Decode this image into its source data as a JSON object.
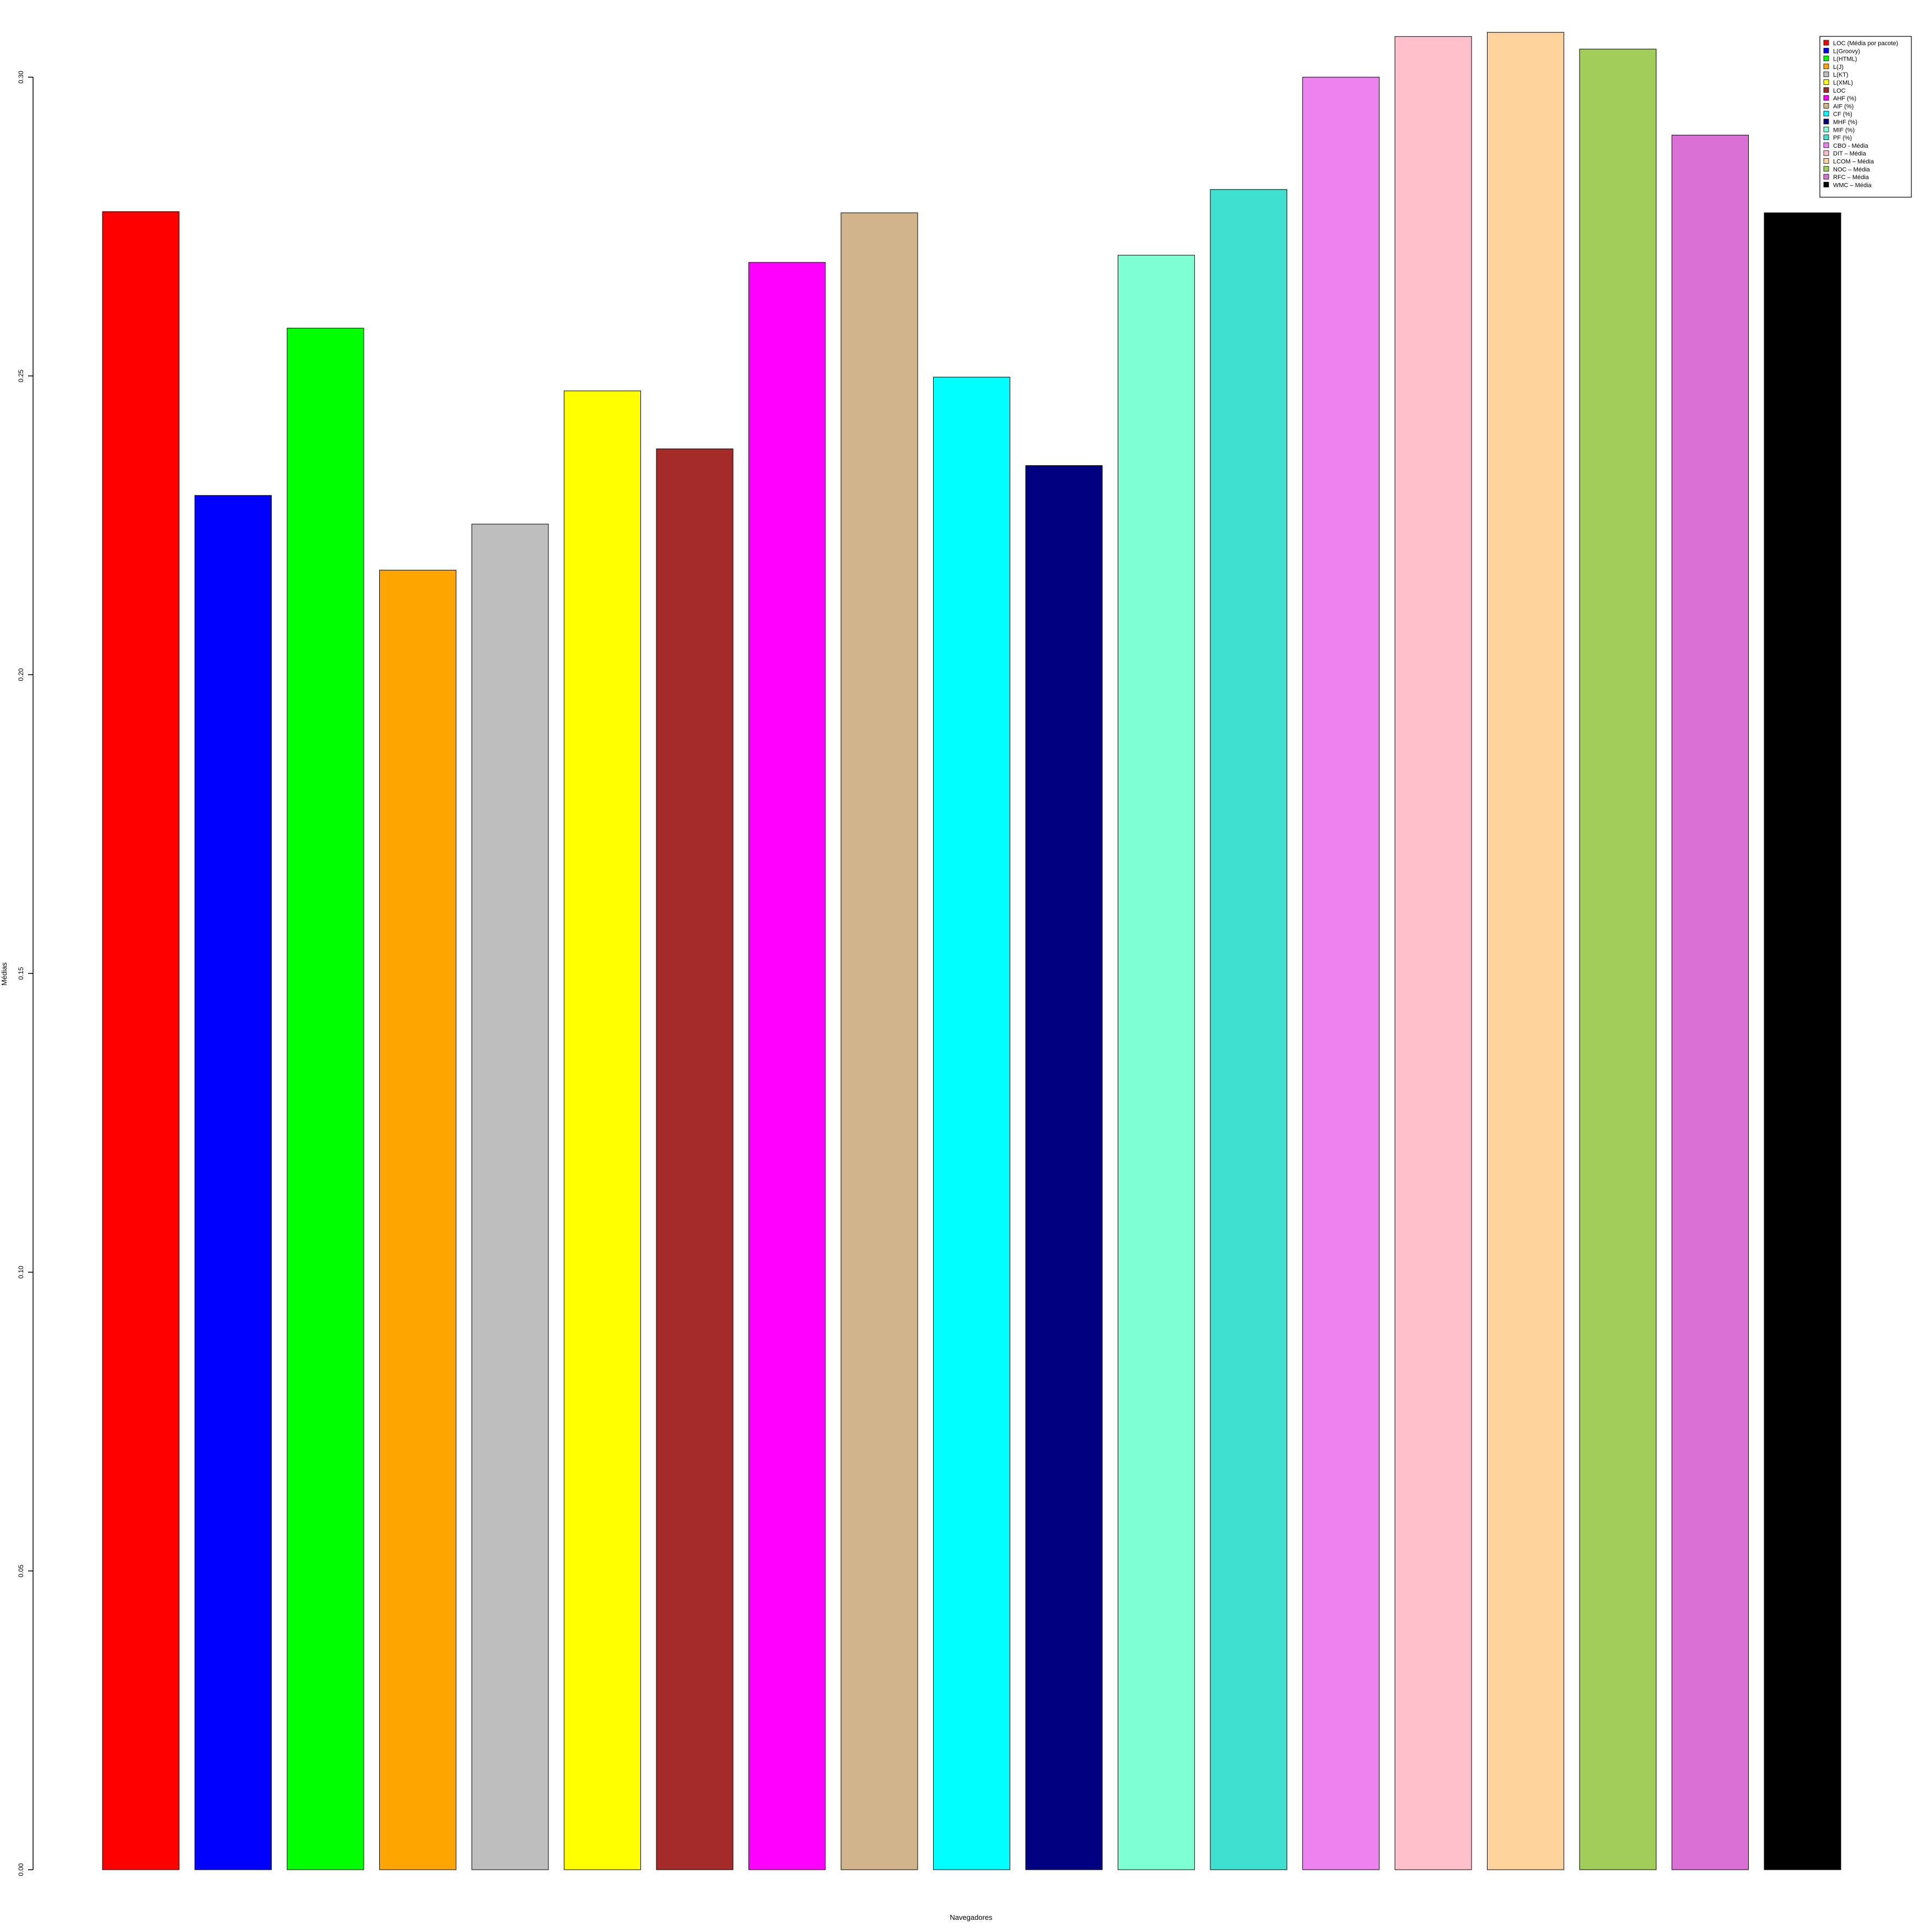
{
  "chart_data": {
    "type": "bar",
    "title": "",
    "xlabel": "Navegadores",
    "ylabel": "Médias",
    "ylim": [
      0,
      0.3
    ],
    "yticks": [
      "0.00",
      "0.05",
      "0.10",
      "0.15",
      "0.20",
      "0.25",
      "0.30"
    ],
    "ytick_values": [
      0,
      0.05,
      0.1,
      0.15,
      0.2,
      0.25,
      0.3
    ],
    "legend_position": "top-right",
    "grid": false,
    "categories": [
      "LOC (Média por pacote)",
      "L(Groovy)",
      "L(HTML)",
      "L(J)",
      "L(KT)",
      "L(XML)",
      "LOC",
      "AHF (%)",
      "AIF (%)",
      "CF (%)",
      "MHF (%)",
      "MIF (%)",
      "PF (%)",
      "CBO - Média",
      "DIT – Média",
      "LCOM – Média",
      "NOC – Média",
      "RFC – Média",
      "WMC – Média"
    ],
    "values": [
      0.2775,
      0.23,
      0.258,
      0.2175,
      0.2252,
      0.2475,
      0.2378,
      0.269,
      0.2773,
      0.2498,
      0.235,
      0.2702,
      0.2812,
      0.3,
      0.3068,
      0.3075,
      0.3047,
      0.2903,
      0.2773
    ],
    "colors": [
      "#FF0000",
      "#0000FF",
      "#00FF00",
      "#FFA500",
      "#BEBEBE",
      "#FFFF00",
      "#A52A2A",
      "#FF00FF",
      "#D2B48C",
      "#00FFFF",
      "#000080",
      "#7FFFD4",
      "#40E0D0",
      "#EE82EE",
      "#FFC0CB",
      "#FFD39B",
      "#A2CD5A",
      "#DA70D6",
      "#000000"
    ]
  }
}
